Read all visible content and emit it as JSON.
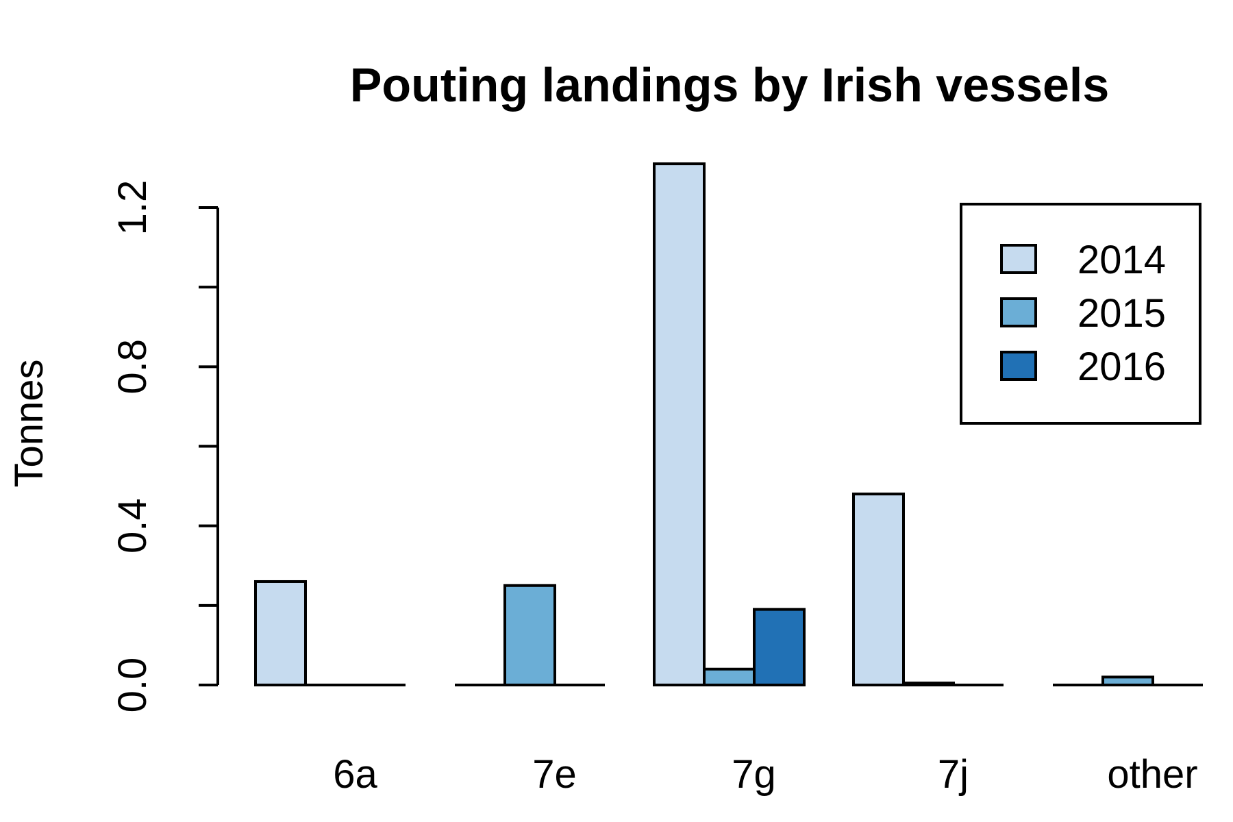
{
  "chart_data": {
    "type": "bar",
    "title": "Pouting landings by Irish vessels",
    "xlabel": "",
    "ylabel": "Tonnes",
    "categories": [
      "6a",
      "7e",
      "7g",
      "7j",
      "other"
    ],
    "series": [
      {
        "name": "2014",
        "color": "#c6dbef",
        "values": [
          0.26,
          0.0,
          1.31,
          0.48,
          0.0
        ]
      },
      {
        "name": "2015",
        "color": "#6baed6",
        "values": [
          0.0,
          0.25,
          0.04,
          0.005,
          0.02
        ]
      },
      {
        "name": "2016",
        "color": "#2171b5",
        "values": [
          0.0,
          0.0,
          0.19,
          0.0,
          0.0
        ]
      }
    ],
    "yticks": [
      "0.0",
      "0.4",
      "0.8",
      "1.2"
    ],
    "ylim": [
      0,
      1.2
    ],
    "ytick_step": 0.2,
    "grid": false,
    "legend": "top-right"
  }
}
